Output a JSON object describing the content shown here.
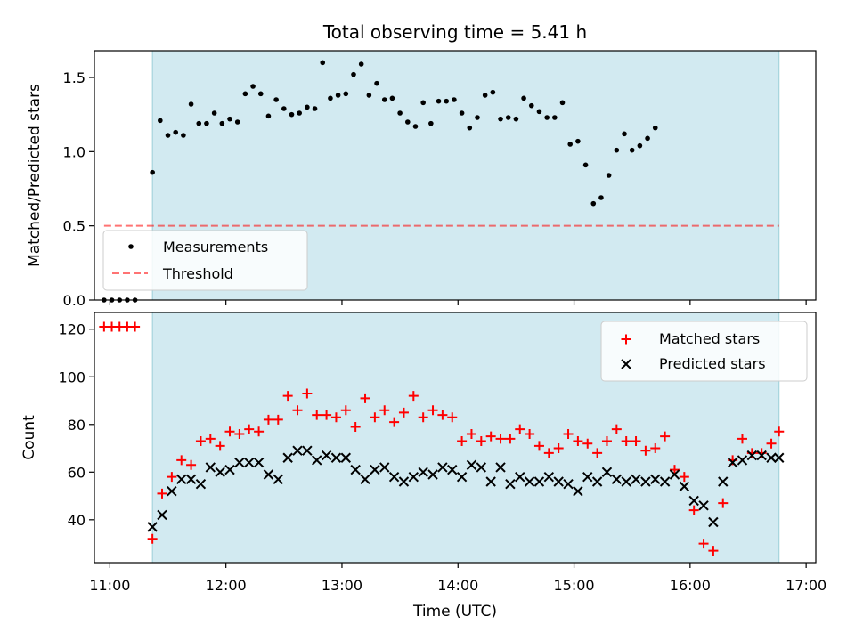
{
  "chart_data": [
    {
      "type": "scatter",
      "title": "Total observing time = 5.41 h",
      "xlabel": "",
      "ylabel": "Matched/Predicted stars",
      "ylim": [
        0,
        1.68
      ],
      "xlim": [
        "10:52",
        "17:05"
      ],
      "yticks": [
        "0.0",
        "0.5",
        "1.0",
        "1.5"
      ],
      "shaded_span": [
        "11:22",
        "16:46"
      ],
      "shade_color": "#add8e6",
      "legend_position": "lower-left",
      "threshold": {
        "name": "Threshold",
        "value": 0.5,
        "x_start": "10:57",
        "x_end": "16:46",
        "color": "#ff0000"
      },
      "series": [
        {
          "name": "Measurements",
          "color": "#000000",
          "points": [
            [
              "10:57",
              0.0
            ],
            [
              "11:01",
              0.0
            ],
            [
              "11:05",
              0.0
            ],
            [
              "11:09",
              0.0
            ],
            [
              "11:13",
              0.0
            ],
            [
              "11:22",
              0.86
            ],
            [
              "11:26",
              1.21
            ],
            [
              "11:30",
              1.11
            ],
            [
              "11:34",
              1.13
            ],
            [
              "11:38",
              1.11
            ],
            [
              "11:42",
              1.32
            ],
            [
              "11:46",
              1.19
            ],
            [
              "11:50",
              1.19
            ],
            [
              "11:54",
              1.26
            ],
            [
              "11:58",
              1.19
            ],
            [
              "12:02",
              1.22
            ],
            [
              "12:06",
              1.2
            ],
            [
              "12:10",
              1.39
            ],
            [
              "12:14",
              1.44
            ],
            [
              "12:18",
              1.39
            ],
            [
              "12:22",
              1.24
            ],
            [
              "12:26",
              1.35
            ],
            [
              "12:30",
              1.29
            ],
            [
              "12:34",
              1.25
            ],
            [
              "12:38",
              1.26
            ],
            [
              "12:42",
              1.3
            ],
            [
              "12:46",
              1.29
            ],
            [
              "12:50",
              1.6
            ],
            [
              "12:54",
              1.36
            ],
            [
              "12:58",
              1.38
            ],
            [
              "13:02",
              1.39
            ],
            [
              "13:06",
              1.52
            ],
            [
              "13:10",
              1.59
            ],
            [
              "13:14",
              1.38
            ],
            [
              "13:18",
              1.46
            ],
            [
              "13:22",
              1.35
            ],
            [
              "13:26",
              1.36
            ],
            [
              "13:30",
              1.26
            ],
            [
              "13:34",
              1.2
            ],
            [
              "13:38",
              1.17
            ],
            [
              "13:42",
              1.33
            ],
            [
              "13:46",
              1.19
            ],
            [
              "13:50",
              1.34
            ],
            [
              "13:54",
              1.34
            ],
            [
              "13:58",
              1.35
            ],
            [
              "14:02",
              1.26
            ],
            [
              "14:06",
              1.16
            ],
            [
              "14:10",
              1.23
            ],
            [
              "14:14",
              1.38
            ],
            [
              "14:18",
              1.4
            ],
            [
              "14:22",
              1.22
            ],
            [
              "14:26",
              1.23
            ],
            [
              "14:30",
              1.22
            ],
            [
              "14:34",
              1.36
            ],
            [
              "14:38",
              1.31
            ],
            [
              "14:42",
              1.27
            ],
            [
              "14:46",
              1.23
            ],
            [
              "14:50",
              1.23
            ],
            [
              "14:54",
              1.33
            ],
            [
              "14:58",
              1.05
            ],
            [
              "15:02",
              1.07
            ],
            [
              "15:06",
              0.91
            ],
            [
              "15:10",
              0.65
            ],
            [
              "15:14",
              0.69
            ],
            [
              "15:18",
              0.84
            ],
            [
              "15:22",
              1.01
            ],
            [
              "15:26",
              1.12
            ],
            [
              "15:30",
              1.01
            ],
            [
              "15:34",
              1.04
            ],
            [
              "15:38",
              1.09
            ],
            [
              "15:42",
              1.16
            ]
          ]
        }
      ]
    },
    {
      "type": "scatter",
      "title": "",
      "xlabel": "Time (UTC)",
      "ylabel": "Count",
      "ylim": [
        22,
        127
      ],
      "xlim": [
        "10:52",
        "17:05"
      ],
      "yticks": [
        "40",
        "60",
        "80",
        "100",
        "120"
      ],
      "xticks": [
        "11:00",
        "12:00",
        "13:00",
        "14:00",
        "15:00",
        "16:00",
        "17:00"
      ],
      "shaded_span": [
        "11:22",
        "16:46"
      ],
      "shade_color": "#add8e6",
      "legend_position": "upper-right",
      "series": [
        {
          "name": "Matched stars",
          "marker": "plus",
          "color": "#ff0000",
          "points": [
            [
              "10:57",
              121
            ],
            [
              "11:01",
              121
            ],
            [
              "11:05",
              121
            ],
            [
              "11:09",
              121
            ],
            [
              "11:13",
              121
            ],
            [
              "11:22",
              32
            ],
            [
              "11:27",
              51
            ],
            [
              "11:32",
              58
            ],
            [
              "11:37",
              65
            ],
            [
              "11:42",
              63
            ],
            [
              "11:47",
              73
            ],
            [
              "11:52",
              74
            ],
            [
              "11:57",
              71
            ],
            [
              "12:02",
              77
            ],
            [
              "12:07",
              76
            ],
            [
              "12:12",
              78
            ],
            [
              "12:17",
              77
            ],
            [
              "12:22",
              82
            ],
            [
              "12:27",
              82
            ],
            [
              "12:32",
              92
            ],
            [
              "12:37",
              86
            ],
            [
              "12:42",
              93
            ],
            [
              "12:47",
              84
            ],
            [
              "12:52",
              84
            ],
            [
              "12:57",
              83
            ],
            [
              "13:02",
              86
            ],
            [
              "13:07",
              79
            ],
            [
              "13:12",
              91
            ],
            [
              "13:17",
              83
            ],
            [
              "13:22",
              86
            ],
            [
              "13:27",
              81
            ],
            [
              "13:32",
              85
            ],
            [
              "13:37",
              92
            ],
            [
              "13:42",
              83
            ],
            [
              "13:47",
              86
            ],
            [
              "13:52",
              84
            ],
            [
              "13:57",
              83
            ],
            [
              "14:02",
              73
            ],
            [
              "14:07",
              76
            ],
            [
              "14:12",
              73
            ],
            [
              "14:17",
              75
            ],
            [
              "14:22",
              74
            ],
            [
              "14:27",
              74
            ],
            [
              "14:32",
              78
            ],
            [
              "14:37",
              76
            ],
            [
              "14:42",
              71
            ],
            [
              "14:47",
              68
            ],
            [
              "14:52",
              70
            ],
            [
              "14:57",
              76
            ],
            [
              "15:02",
              73
            ],
            [
              "15:07",
              72
            ],
            [
              "15:12",
              68
            ],
            [
              "15:17",
              73
            ],
            [
              "15:22",
              78
            ],
            [
              "15:27",
              73
            ],
            [
              "15:32",
              73
            ],
            [
              "15:37",
              69
            ],
            [
              "15:42",
              70
            ],
            [
              "15:47",
              75
            ],
            [
              "15:52",
              61
            ],
            [
              "15:57",
              58
            ],
            [
              "16:02",
              44
            ],
            [
              "16:07",
              30
            ],
            [
              "16:12",
              27
            ],
            [
              "16:17",
              47
            ],
            [
              "16:22",
              65
            ],
            [
              "16:27",
              74
            ],
            [
              "16:32",
              68
            ],
            [
              "16:37",
              68
            ],
            [
              "16:42",
              72
            ],
            [
              "16:46",
              77
            ]
          ]
        },
        {
          "name": "Predicted stars",
          "marker": "x",
          "color": "#000000",
          "points": [
            [
              "11:22",
              37
            ],
            [
              "11:27",
              42
            ],
            [
              "11:32",
              52
            ],
            [
              "11:37",
              57
            ],
            [
              "11:42",
              57
            ],
            [
              "11:47",
              55
            ],
            [
              "11:52",
              62
            ],
            [
              "11:57",
              60
            ],
            [
              "12:02",
              61
            ],
            [
              "12:07",
              64
            ],
            [
              "12:12",
              64
            ],
            [
              "12:17",
              64
            ],
            [
              "12:22",
              59
            ],
            [
              "12:27",
              57
            ],
            [
              "12:32",
              66
            ],
            [
              "12:37",
              69
            ],
            [
              "12:42",
              69
            ],
            [
              "12:47",
              65
            ],
            [
              "12:52",
              67
            ],
            [
              "12:57",
              66
            ],
            [
              "13:02",
              66
            ],
            [
              "13:07",
              61
            ],
            [
              "13:12",
              57
            ],
            [
              "13:17",
              61
            ],
            [
              "13:22",
              62
            ],
            [
              "13:27",
              58
            ],
            [
              "13:32",
              56
            ],
            [
              "13:37",
              58
            ],
            [
              "13:42",
              60
            ],
            [
              "13:47",
              59
            ],
            [
              "13:52",
              62
            ],
            [
              "13:57",
              61
            ],
            [
              "14:02",
              58
            ],
            [
              "14:07",
              63
            ],
            [
              "14:12",
              62
            ],
            [
              "14:17",
              56
            ],
            [
              "14:22",
              62
            ],
            [
              "14:27",
              55
            ],
            [
              "14:32",
              58
            ],
            [
              "14:37",
              56
            ],
            [
              "14:42",
              56
            ],
            [
              "14:47",
              58
            ],
            [
              "14:52",
              56
            ],
            [
              "14:57",
              55
            ],
            [
              "15:02",
              52
            ],
            [
              "15:07",
              58
            ],
            [
              "15:12",
              56
            ],
            [
              "15:17",
              60
            ],
            [
              "15:22",
              57
            ],
            [
              "15:27",
              56
            ],
            [
              "15:32",
              57
            ],
            [
              "15:37",
              56
            ],
            [
              "15:42",
              57
            ],
            [
              "15:47",
              56
            ],
            [
              "15:52",
              59
            ],
            [
              "15:57",
              54
            ],
            [
              "16:02",
              48
            ],
            [
              "16:07",
              46
            ],
            [
              "16:12",
              39
            ],
            [
              "16:17",
              56
            ],
            [
              "16:22",
              64
            ],
            [
              "16:27",
              65
            ],
            [
              "16:32",
              67
            ],
            [
              "16:37",
              67
            ],
            [
              "16:42",
              66
            ],
            [
              "16:46",
              66
            ]
          ]
        }
      ]
    }
  ]
}
